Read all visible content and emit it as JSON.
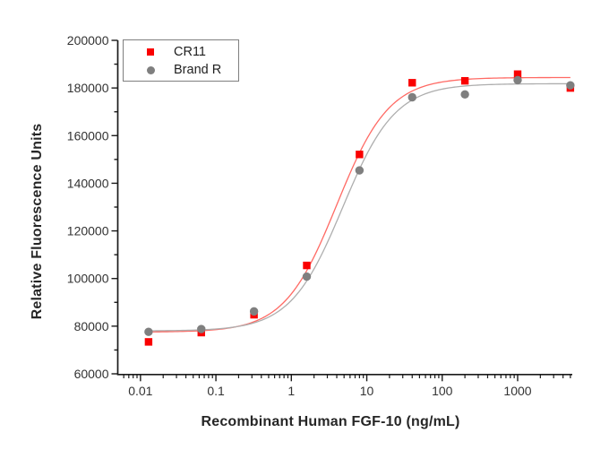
{
  "figure": {
    "background": "#ffffff"
  },
  "chart_data": {
    "type": "scatter",
    "title": "",
    "x": [
      0.0128,
      0.064,
      0.32,
      1.6,
      8,
      40,
      200,
      1000,
      5000
    ],
    "series": [
      {
        "name": "CR11",
        "marker": "square",
        "color": "#fa0000",
        "curve_color": "#ff6a64",
        "values": [
          73400,
          77300,
          84800,
          105500,
          152100,
          182200,
          183000,
          185800,
          180000
        ],
        "fit_4pl": {
          "bottom": 77500,
          "top": 184400,
          "ec50": 4.0,
          "hill": 1.25
        }
      },
      {
        "name": "Brand R",
        "marker": "circle",
        "color": "#7f7f7f",
        "curve_color": "#aeaeae",
        "values": [
          77600,
          78800,
          86200,
          100800,
          145400,
          176100,
          177300,
          183300,
          181100
        ],
        "fit_4pl": {
          "bottom": 78000,
          "top": 181800,
          "ec50": 4.8,
          "hill": 1.25
        }
      }
    ],
    "x_axis": {
      "label": "Recombinant Human FGF-10 (ng/mL)",
      "scale": "log",
      "range": [
        0.005,
        5300
      ],
      "major_ticks": [
        0.01,
        0.1,
        1,
        10,
        100,
        1000
      ],
      "tick_labels": [
        "0.01",
        "0.1",
        "1",
        "10",
        "100",
        "1000"
      ]
    },
    "y_axis": {
      "label": "Relative Fluorescence Units",
      "scale": "linear",
      "range": [
        60000,
        200000
      ],
      "major_tick_step": 20000,
      "minor_tick_step": 10000,
      "tick_labels": [
        "60000",
        "80000",
        "100000",
        "120000",
        "140000",
        "160000",
        "180000",
        "200000"
      ]
    },
    "legend": {
      "position": "top-left",
      "entries": [
        "CR11",
        "Brand R"
      ]
    },
    "grid": false,
    "axis_color": "#1a1a1a",
    "tick_label_color": "#333333"
  }
}
